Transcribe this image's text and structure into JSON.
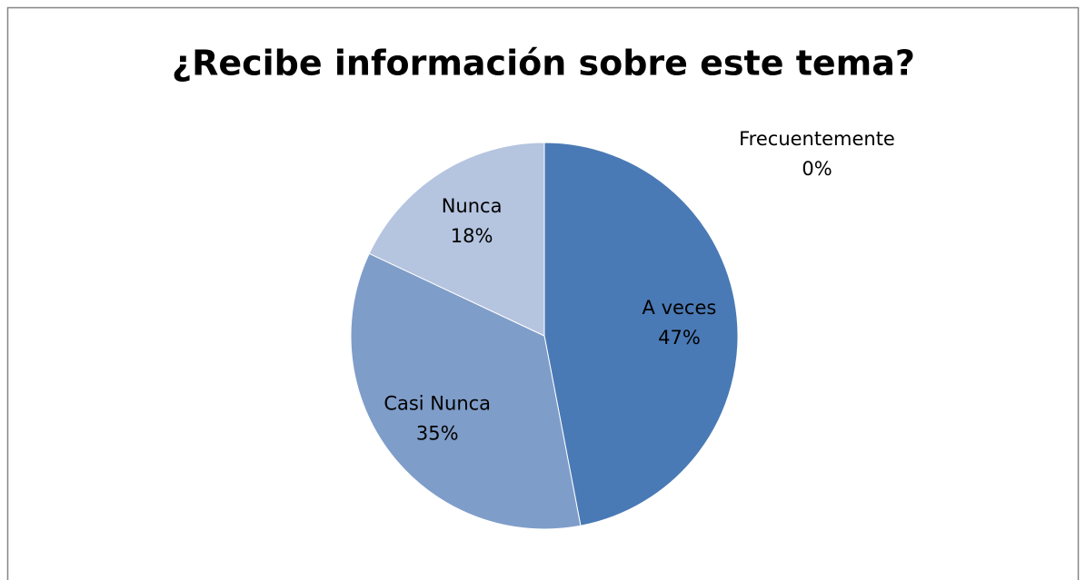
{
  "chart_data": {
    "type": "pie",
    "title": "¿Recibe información sobre este tema?",
    "categories": [
      "Frecuentemente",
      "A veces",
      "Casi Nunca",
      "Nunca"
    ],
    "values": [
      0,
      47,
      35,
      18
    ],
    "value_labels": [
      "0%",
      "47%",
      "35%",
      "18%"
    ],
    "colors": [
      "#2f5c8f",
      "#4a7ab5",
      "#7f9dc9",
      "#b5c4df"
    ]
  }
}
